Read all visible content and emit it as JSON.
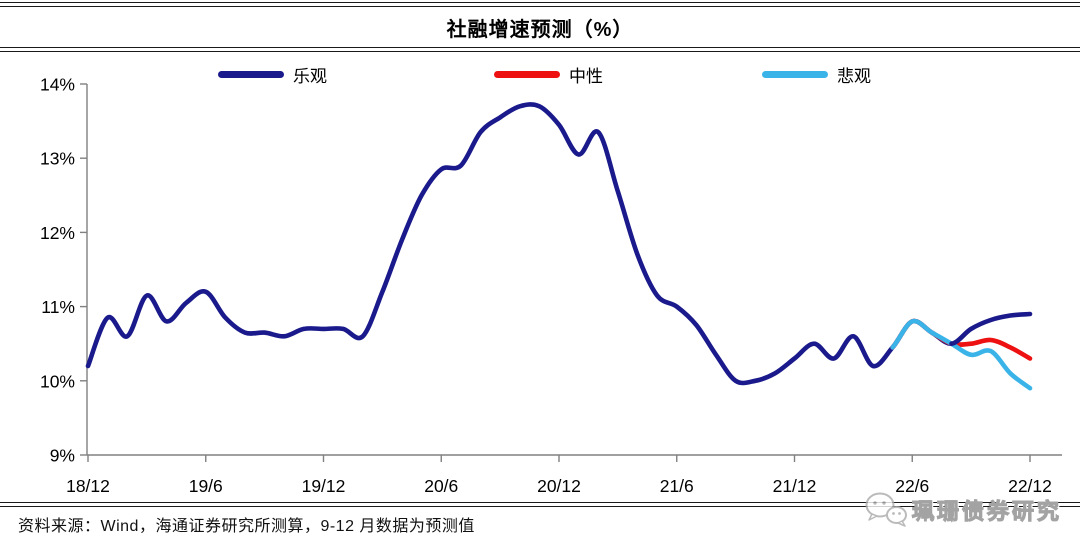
{
  "chart_data": {
    "type": "line",
    "title": "社融增速预测（%）",
    "x_tick_labels": [
      "18/12",
      "19/6",
      "19/12",
      "20/6",
      "20/12",
      "21/6",
      "21/12",
      "22/6",
      "22/12"
    ],
    "y_tick_labels": [
      "14%",
      "13%",
      "12%",
      "11%",
      "10%",
      "9%"
    ],
    "ylim": [
      9,
      14
    ],
    "y_tick_step": 1,
    "x_range_months": 49,
    "grid": false,
    "legend_position": "top",
    "forecast_start_index": 45,
    "series": [
      {
        "name": "乐观",
        "color": "#1a1a8c",
        "start_index": 0,
        "values": [
          10.2,
          10.85,
          10.6,
          11.15,
          10.8,
          11.05,
          11.2,
          10.85,
          10.65,
          10.65,
          10.6,
          10.7,
          10.7,
          10.7,
          10.6,
          11.2,
          11.9,
          12.5,
          12.85,
          12.9,
          13.35,
          13.55,
          13.7,
          13.7,
          13.45,
          13.05,
          13.35,
          12.55,
          11.7,
          11.15,
          11.0,
          10.75,
          10.35,
          10.0,
          10.0,
          10.1,
          10.3,
          10.5,
          10.3,
          10.6,
          10.2,
          10.45,
          10.8,
          10.65,
          10.5,
          10.7,
          10.82,
          10.88,
          10.9
        ]
      },
      {
        "name": "中性",
        "color": "#ee1111",
        "start_index": 41,
        "values": [
          10.45,
          10.8,
          10.65,
          10.5,
          10.5,
          10.55,
          10.45,
          10.3
        ]
      },
      {
        "name": "悲观",
        "color": "#3ab4e8",
        "start_index": 41,
        "values": [
          10.45,
          10.8,
          10.65,
          10.5,
          10.35,
          10.4,
          10.1,
          9.9
        ]
      }
    ]
  },
  "footer": {
    "source_text": "资料来源：Wind，海通证券研究所测算，9-12 月数据为预测值"
  },
  "watermark": {
    "icon": "wechat-icon",
    "text": "珮珊债券研究"
  }
}
